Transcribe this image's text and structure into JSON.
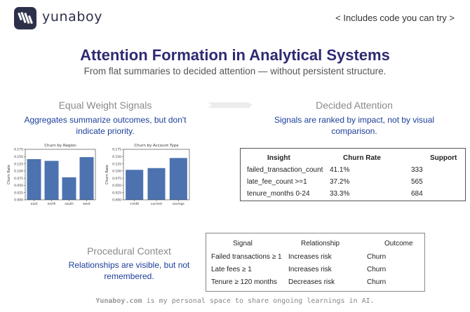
{
  "header": {
    "brand": "yunaboy",
    "code_link": "< Includes code you can try >"
  },
  "title": "Attention Formation in Analytical Systems",
  "subtitle": "From flat summaries to decided attention — without persistent structure.",
  "sections": {
    "equal_weight": {
      "title": "Equal Weight Signals",
      "desc": "Aggregates summarize outcomes, but don't indicate priority."
    },
    "decided_attention": {
      "title": "Decided Attention",
      "desc": "Signals are ranked by impact, not by visual comparison."
    },
    "procedural": {
      "title": "Procedural Context",
      "desc": "Relationships are visible, but not remembered."
    }
  },
  "chart_data": [
    {
      "type": "bar",
      "title": "Churn by Region",
      "xlabel": "",
      "ylabel": "Churn Rate",
      "categories": [
        "east",
        "north",
        "south",
        "west"
      ],
      "values": [
        0.141,
        0.135,
        0.078,
        0.148
      ],
      "ylim": [
        0,
        0.175
      ],
      "yticks": [
        "0.000",
        "0.025",
        "0.050",
        "0.075",
        "0.100",
        "0.125",
        "0.150",
        "0.175"
      ],
      "color": "#4c72b0"
    },
    {
      "type": "bar",
      "title": "Churn by Account Type",
      "xlabel": "",
      "ylabel": "Churn Rate",
      "categories": [
        "credit",
        "current",
        "savings"
      ],
      "values": [
        0.104,
        0.11,
        0.145
      ],
      "ylim": [
        0,
        0.175
      ],
      "yticks": [
        "0.000",
        "0.025",
        "0.050",
        "0.075",
        "0.100",
        "0.125",
        "0.150",
        "0.175"
      ],
      "color": "#4c72b0"
    }
  ],
  "insight_table": {
    "headers": [
      "Insight",
      "Churn Rate",
      "Support"
    ],
    "rows": [
      [
        "failed_transaction_count",
        "41.1%",
        "333"
      ],
      [
        "late_fee_count >=1",
        "37.2%",
        "565"
      ],
      [
        "tenure_months 0-24",
        "33.3%",
        "684"
      ]
    ]
  },
  "procedural_table": {
    "headers": [
      "Signal",
      "Relationship",
      "Outcome"
    ],
    "rows": [
      [
        "Failed transactions ≥ 1",
        "Increases risk",
        "Churn"
      ],
      [
        "Late fees ≥ 1",
        "Increases risk",
        "Churn"
      ],
      [
        "Tenure ≥ 120 months",
        "Decreases risk",
        "Churn"
      ]
    ]
  },
  "footer": {
    "site": "Yunaboy.com",
    "text": " is my personal space to share ongoing learnings in AI."
  },
  "colors": {
    "title": "#2e2a73",
    "accent_text": "#1c3f9a",
    "logo_bg": "#2d3049",
    "bar": "#4c72b0"
  },
  "icons": [
    "logo-icon",
    "arrow-right-icon"
  ]
}
